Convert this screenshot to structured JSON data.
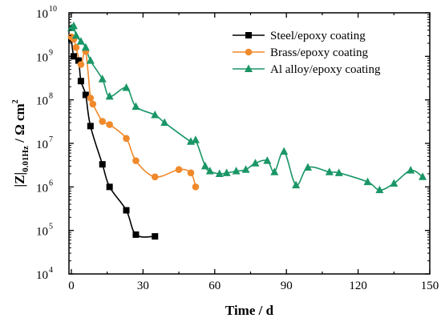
{
  "chart_data": {
    "type": "scatter",
    "xlabel": "Time / d",
    "ylabel_parts": {
      "main": "|Z|",
      "subscript": "0.01Hz",
      "unit": " / Ω cm",
      "unit_exponent": "2"
    },
    "xlim": [
      -1,
      150
    ],
    "ylim_log10": [
      4,
      10
    ],
    "y_scale": "log",
    "x_ticks": [
      0,
      30,
      60,
      90,
      120,
      150
    ],
    "x_tick_labels": [
      "0",
      "30",
      "60",
      "90",
      "120",
      "150"
    ],
    "y_ticks_log10": [
      4,
      5,
      6,
      7,
      8,
      9,
      10
    ],
    "y_tick_labels": [
      {
        "base": "10",
        "exp": "4"
      },
      {
        "base": "10",
        "exp": "5"
      },
      {
        "base": "10",
        "exp": "6"
      },
      {
        "base": "10",
        "exp": "7"
      },
      {
        "base": "10",
        "exp": "8"
      },
      {
        "base": "10",
        "exp": "9"
      },
      {
        "base": "10",
        "exp": "10"
      }
    ],
    "legend_position": "top-right",
    "grid": false,
    "series": [
      {
        "name": "Steel/epoxy coating",
        "color": "#000000",
        "marker": "square",
        "x": [
          0,
          1,
          3,
          4,
          6,
          8,
          13,
          16,
          23,
          27,
          35
        ],
        "y": [
          2500000000.0,
          1000000000.0,
          800000000.0,
          270000000.0,
          130000000.0,
          25000000.0,
          3300000.0,
          1000000.0,
          290000.0,
          80000.0,
          73000.0
        ]
      },
      {
        "name": "Brass/epoxy coating",
        "color": "#f0892b",
        "marker": "circle",
        "x": [
          0,
          1,
          2,
          4,
          6,
          8,
          9,
          13,
          16,
          23,
          27,
          35,
          45,
          50,
          52
        ],
        "y": [
          2800000000.0,
          2500000000.0,
          1600000000.0,
          650000000.0,
          1300000000.0,
          110000000.0,
          80000000.0,
          32000000.0,
          27000000.0,
          13000000.0,
          4000000.0,
          1700000.0,
          2500000.0,
          2100000.0,
          1000000.0
        ]
      },
      {
        "name": "Al alloy/epoxy coating",
        "color": "#1a9666",
        "marker": "triangle",
        "x": [
          0,
          1,
          2,
          4,
          6,
          8,
          13,
          16,
          23,
          27,
          35,
          39,
          50,
          52,
          56,
          58,
          62,
          65,
          69,
          73,
          77,
          82,
          85,
          89,
          94,
          99,
          108,
          112,
          124,
          129,
          135,
          142,
          147
        ],
        "y": [
          4500000000.0,
          5000000000.0,
          3000000000.0,
          2200000000.0,
          1600000000.0,
          800000000.0,
          300000000.0,
          120000000.0,
          190000000.0,
          70000000.0,
          45000000.0,
          30000000.0,
          11000000.0,
          12000000.0,
          3000000.0,
          2300000.0,
          2000000.0,
          2100000.0,
          2300000.0,
          2500000.0,
          3500000.0,
          4000000.0,
          2200000.0,
          6500000.0,
          1100000.0,
          2800000.0,
          2200000.0,
          2100000.0,
          1300000.0,
          850000.0,
          1200000.0,
          2400000.0,
          1700000.0
        ]
      }
    ]
  }
}
